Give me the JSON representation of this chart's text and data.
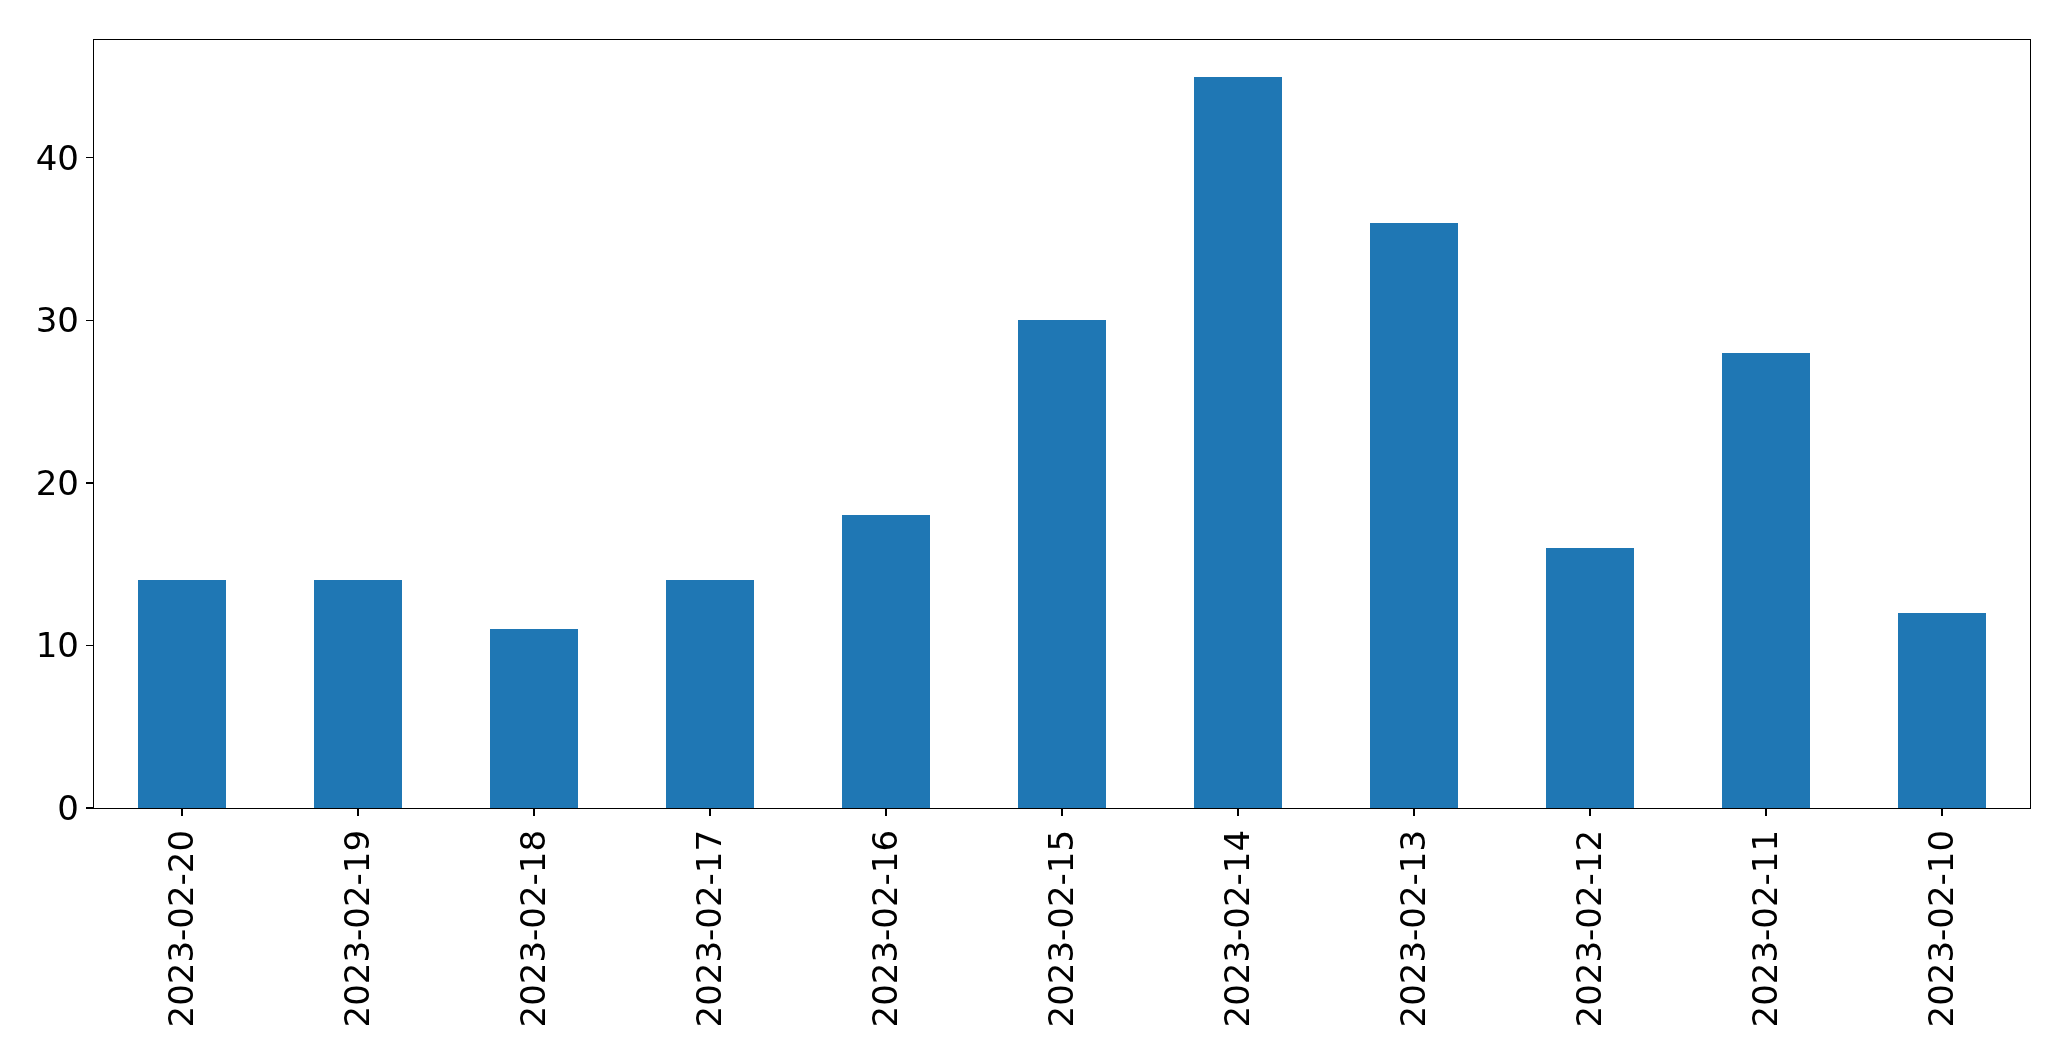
{
  "chart_data": {
    "type": "bar",
    "categories": [
      "2023-02-20",
      "2023-02-19",
      "2023-02-18",
      "2023-02-17",
      "2023-02-16",
      "2023-02-15",
      "2023-02-14",
      "2023-02-13",
      "2023-02-12",
      "2023-02-11",
      "2023-02-10"
    ],
    "values": [
      14,
      14,
      11,
      14,
      18,
      30,
      45,
      36,
      16,
      28,
      12
    ],
    "color": "#1f77b4",
    "ylim": [
      0,
      47.25
    ],
    "yticks": [
      0,
      10,
      20,
      30,
      40
    ],
    "grid": false
  }
}
